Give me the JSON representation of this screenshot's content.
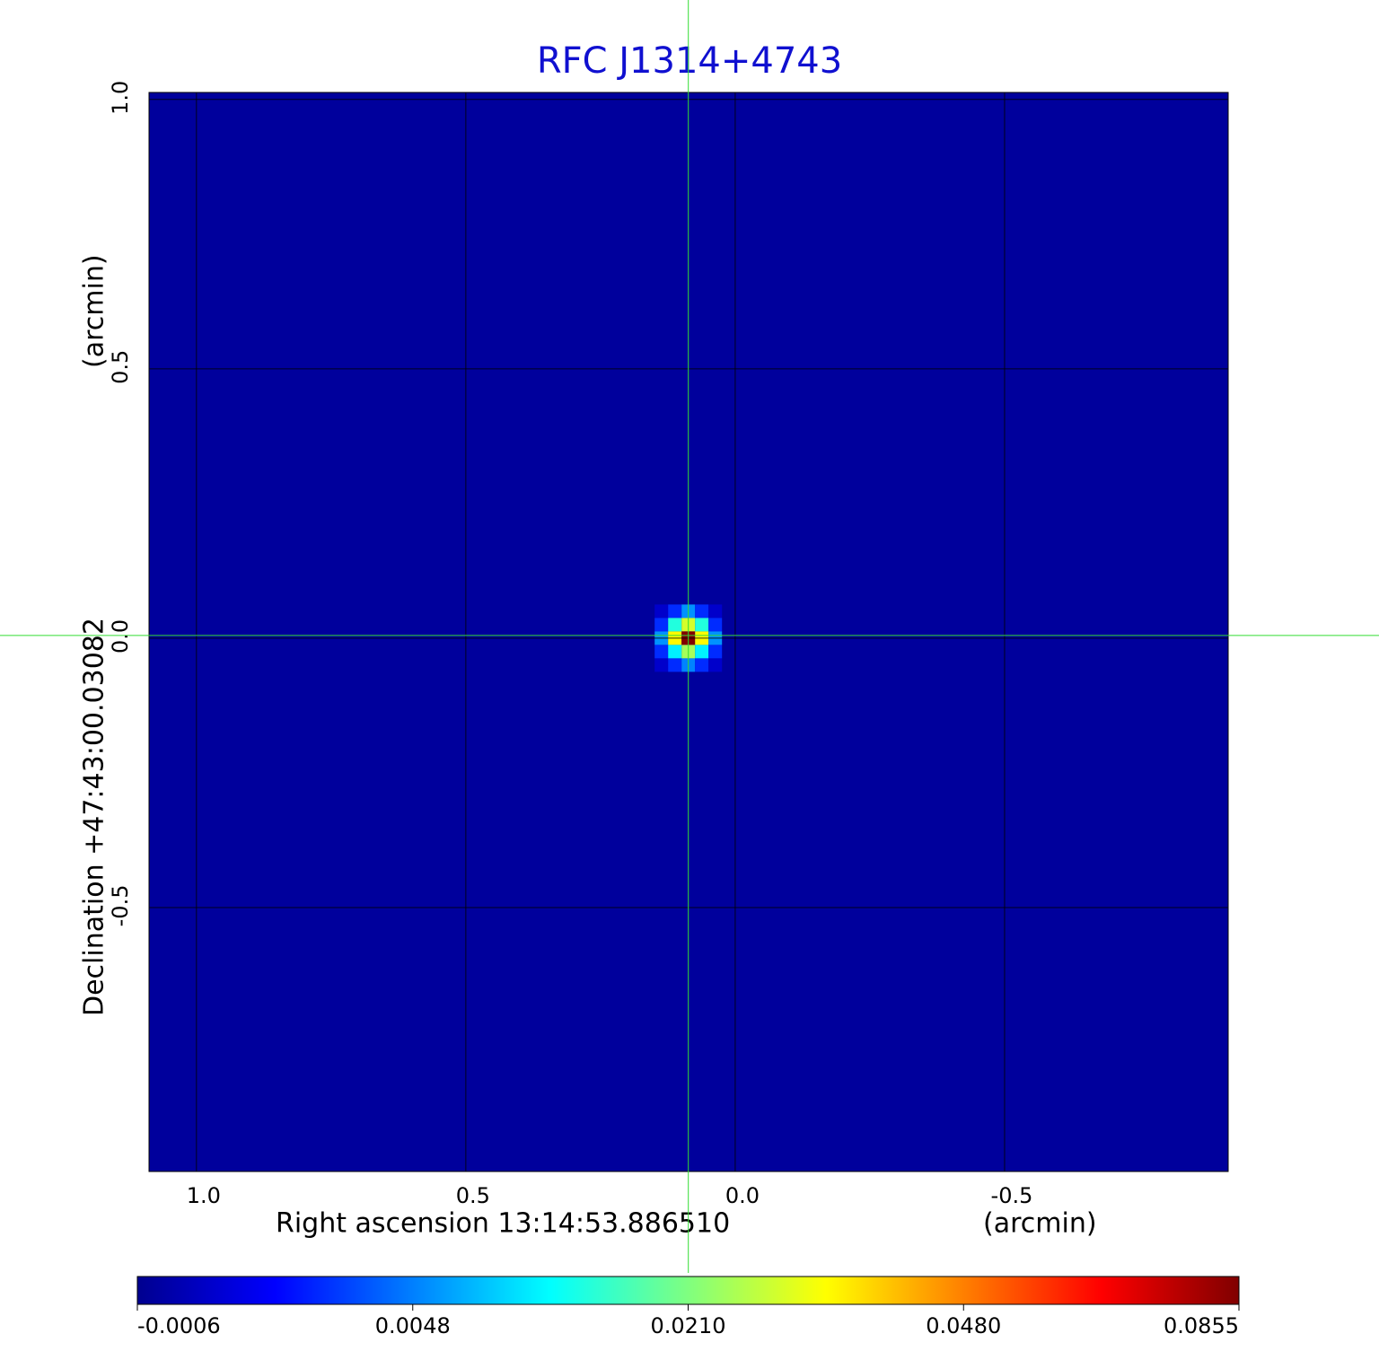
{
  "chart_data": {
    "type": "heatmap",
    "title": "RFC J1314+4743",
    "xlabel": "Right ascension  13:14:53.886510",
    "xunit": "(arcmin)",
    "ylabel": "Declination  +47:43:00.03082",
    "yunit": "(arcmin)",
    "xlim": [
      1.088,
      -0.915
    ],
    "ylim": [
      -0.99,
      1.013
    ],
    "xticks": [
      {
        "value": 1,
        "label": "1.0"
      },
      0.5,
      {
        "value": 0,
        "label": "0.0"
      },
      -0.5
    ],
    "yticks": [
      {
        "value": 1,
        "label": "1.0"
      },
      0.5,
      {
        "value": 0,
        "label": "0.0"
      },
      -0.5
    ],
    "grid": true,
    "colormap": "jet",
    "colorbar_ticks": [
      -0.0006,
      0.0048,
      {
        "value": 0.021,
        "label": "0.0210"
      },
      {
        "value": 0.048,
        "label": "0.0480"
      },
      0.0855
    ],
    "background_value": 0,
    "crosshair": {
      "x": 0.087,
      "y": 0.005,
      "color": "#33dd33"
    },
    "x": [
      0.137,
      0.112,
      0.087,
      0.062,
      0.037
    ],
    "y": [
      0.05,
      0.025,
      0,
      -0.025,
      -0.05
    ],
    "values": [
      [
        0.001,
        0.003,
        0.006,
        0.003,
        0.001
      ],
      [
        0.003,
        0.015,
        0.03,
        0.015,
        0.003
      ],
      [
        0.006,
        0.035,
        0.0855,
        0.035,
        0.006
      ],
      [
        0.003,
        0.012,
        0.025,
        0.012,
        0.003
      ],
      [
        0.001,
        0.003,
        0.005,
        0.003,
        0.001
      ]
    ]
  }
}
